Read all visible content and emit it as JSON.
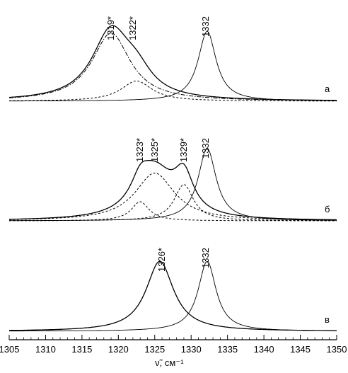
{
  "chart_data": {
    "type": "line",
    "xlabel": "ν̃, см⁻¹",
    "xlim": [
      1305,
      1350
    ],
    "xticks": [
      1305,
      1310,
      1315,
      1320,
      1325,
      1330,
      1335,
      1340,
      1345,
      1350
    ],
    "grid": false,
    "panels": [
      {
        "label": "а",
        "peak_labels": [
          {
            "text": "1319*",
            "x": 1319
          },
          {
            "text": "1322*",
            "x": 1322
          },
          {
            "text": "1332",
            "x": 1332
          }
        ],
        "series": [
          {
            "style": "solid",
            "components": [
              {
                "center": 1319,
                "width": 3.2,
                "height": 0.74
              },
              {
                "center": 1322.5,
                "width": 2.6,
                "height": 0.22
              }
            ]
          },
          {
            "style": "dashdot",
            "components": [
              {
                "center": 1319,
                "width": 3.2,
                "height": 0.74
              }
            ]
          },
          {
            "style": "dashed",
            "components": [
              {
                "center": 1322.5,
                "width": 2.6,
                "height": 0.22
              }
            ]
          },
          {
            "style": "thin",
            "components": [
              {
                "center": 1332.2,
                "width": 1.5,
                "height": 0.76
              }
            ]
          }
        ]
      },
      {
        "label": "б",
        "peak_labels": [
          {
            "text": "1323*",
            "x": 1323
          },
          {
            "text": "1325*",
            "x": 1325
          },
          {
            "text": "1329*",
            "x": 1329
          },
          {
            "text": "1332",
            "x": 1332
          }
        ],
        "series": [
          {
            "style": "solid",
            "components": [
              {
                "center": 1323,
                "width": 1.5,
                "height": 0.2
              },
              {
                "center": 1325,
                "width": 3.3,
                "height": 0.5
              },
              {
                "center": 1329,
                "width": 1.6,
                "height": 0.38
              }
            ]
          },
          {
            "style": "dashed",
            "components": [
              {
                "center": 1323,
                "width": 1.5,
                "height": 0.2
              }
            ]
          },
          {
            "style": "dashed",
            "components": [
              {
                "center": 1325,
                "width": 3.3,
                "height": 0.5
              }
            ]
          },
          {
            "style": "dashed",
            "components": [
              {
                "center": 1329,
                "width": 1.6,
                "height": 0.38
              }
            ]
          },
          {
            "style": "thin",
            "components": [
              {
                "center": 1332.2,
                "width": 1.5,
                "height": 0.76
              }
            ]
          }
        ]
      },
      {
        "label": "в",
        "peak_labels": [
          {
            "text": "1326*",
            "x": 1326
          },
          {
            "text": "1332",
            "x": 1332
          }
        ],
        "series": [
          {
            "style": "solid",
            "components": [
              {
                "center": 1325.7,
                "width": 2.3,
                "height": 0.76
              }
            ]
          },
          {
            "style": "thin",
            "components": [
              {
                "center": 1332.2,
                "width": 1.5,
                "height": 0.76
              }
            ]
          }
        ]
      }
    ]
  }
}
